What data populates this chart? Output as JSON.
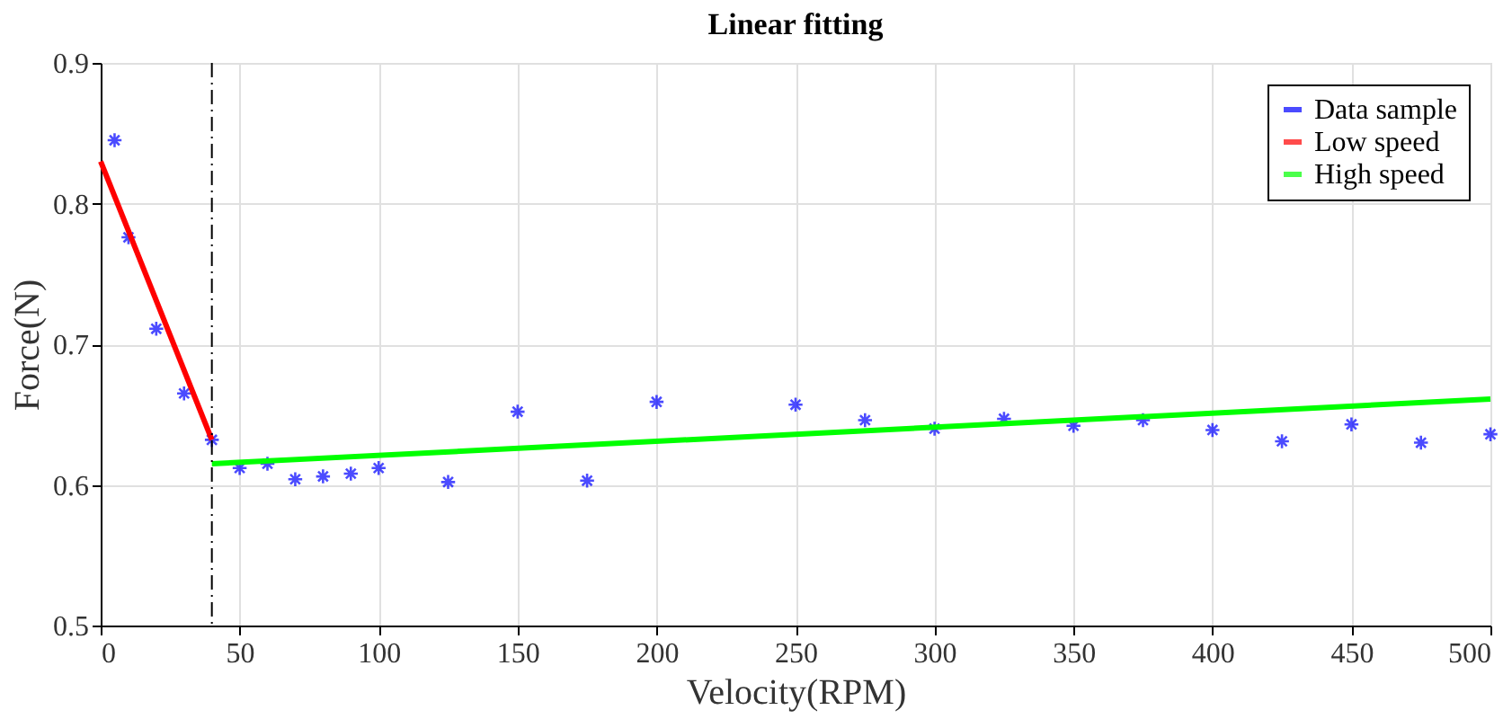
{
  "chart_data": {
    "type": "scatter",
    "title": "Linear fitting",
    "xlabel": "Velocity(RPM)",
    "ylabel": "Force(N)",
    "xlim": [
      0,
      500
    ],
    "xticks": [
      0,
      50,
      100,
      150,
      200,
      250,
      300,
      350,
      400,
      450,
      500
    ],
    "ylim": [
      0.5,
      0.9
    ],
    "yticks": [
      0.5,
      0.6,
      0.7,
      0.8,
      0.9
    ],
    "grid": true,
    "legend": "top right",
    "ref_lines": [
      {
        "axis": "x",
        "value": 40,
        "color": "#000000",
        "line_style": "dashed"
      }
    ],
    "series": [
      {
        "name": "Data sample",
        "type": "scatter",
        "marker": "cross",
        "color": "#0000ff",
        "x": [
          5,
          10,
          20,
          30,
          40,
          50,
          60,
          70,
          80,
          90,
          100,
          125,
          150,
          175,
          200,
          250,
          275,
          300,
          325,
          350,
          375,
          400,
          425,
          450,
          475,
          500
        ],
        "values": [
          0.845,
          0.776,
          0.711,
          0.665,
          0.632,
          0.612,
          0.615,
          0.604,
          0.606,
          0.608,
          0.612,
          0.602,
          0.652,
          0.603,
          0.659,
          0.657,
          0.646,
          0.64,
          0.647,
          0.642,
          0.646,
          0.639,
          0.631,
          0.643,
          0.63,
          0.636
        ]
      },
      {
        "name": "Low speed",
        "type": "line",
        "line_style": "solid",
        "color": "#ff0000",
        "x": [
          0,
          40
        ],
        "values": [
          0.83,
          0.632
        ]
      },
      {
        "name": "High speed",
        "type": "line",
        "line_style": "solid",
        "color": "#00ff00",
        "x": [
          40,
          500
        ],
        "values": [
          0.615,
          0.661
        ]
      }
    ]
  }
}
